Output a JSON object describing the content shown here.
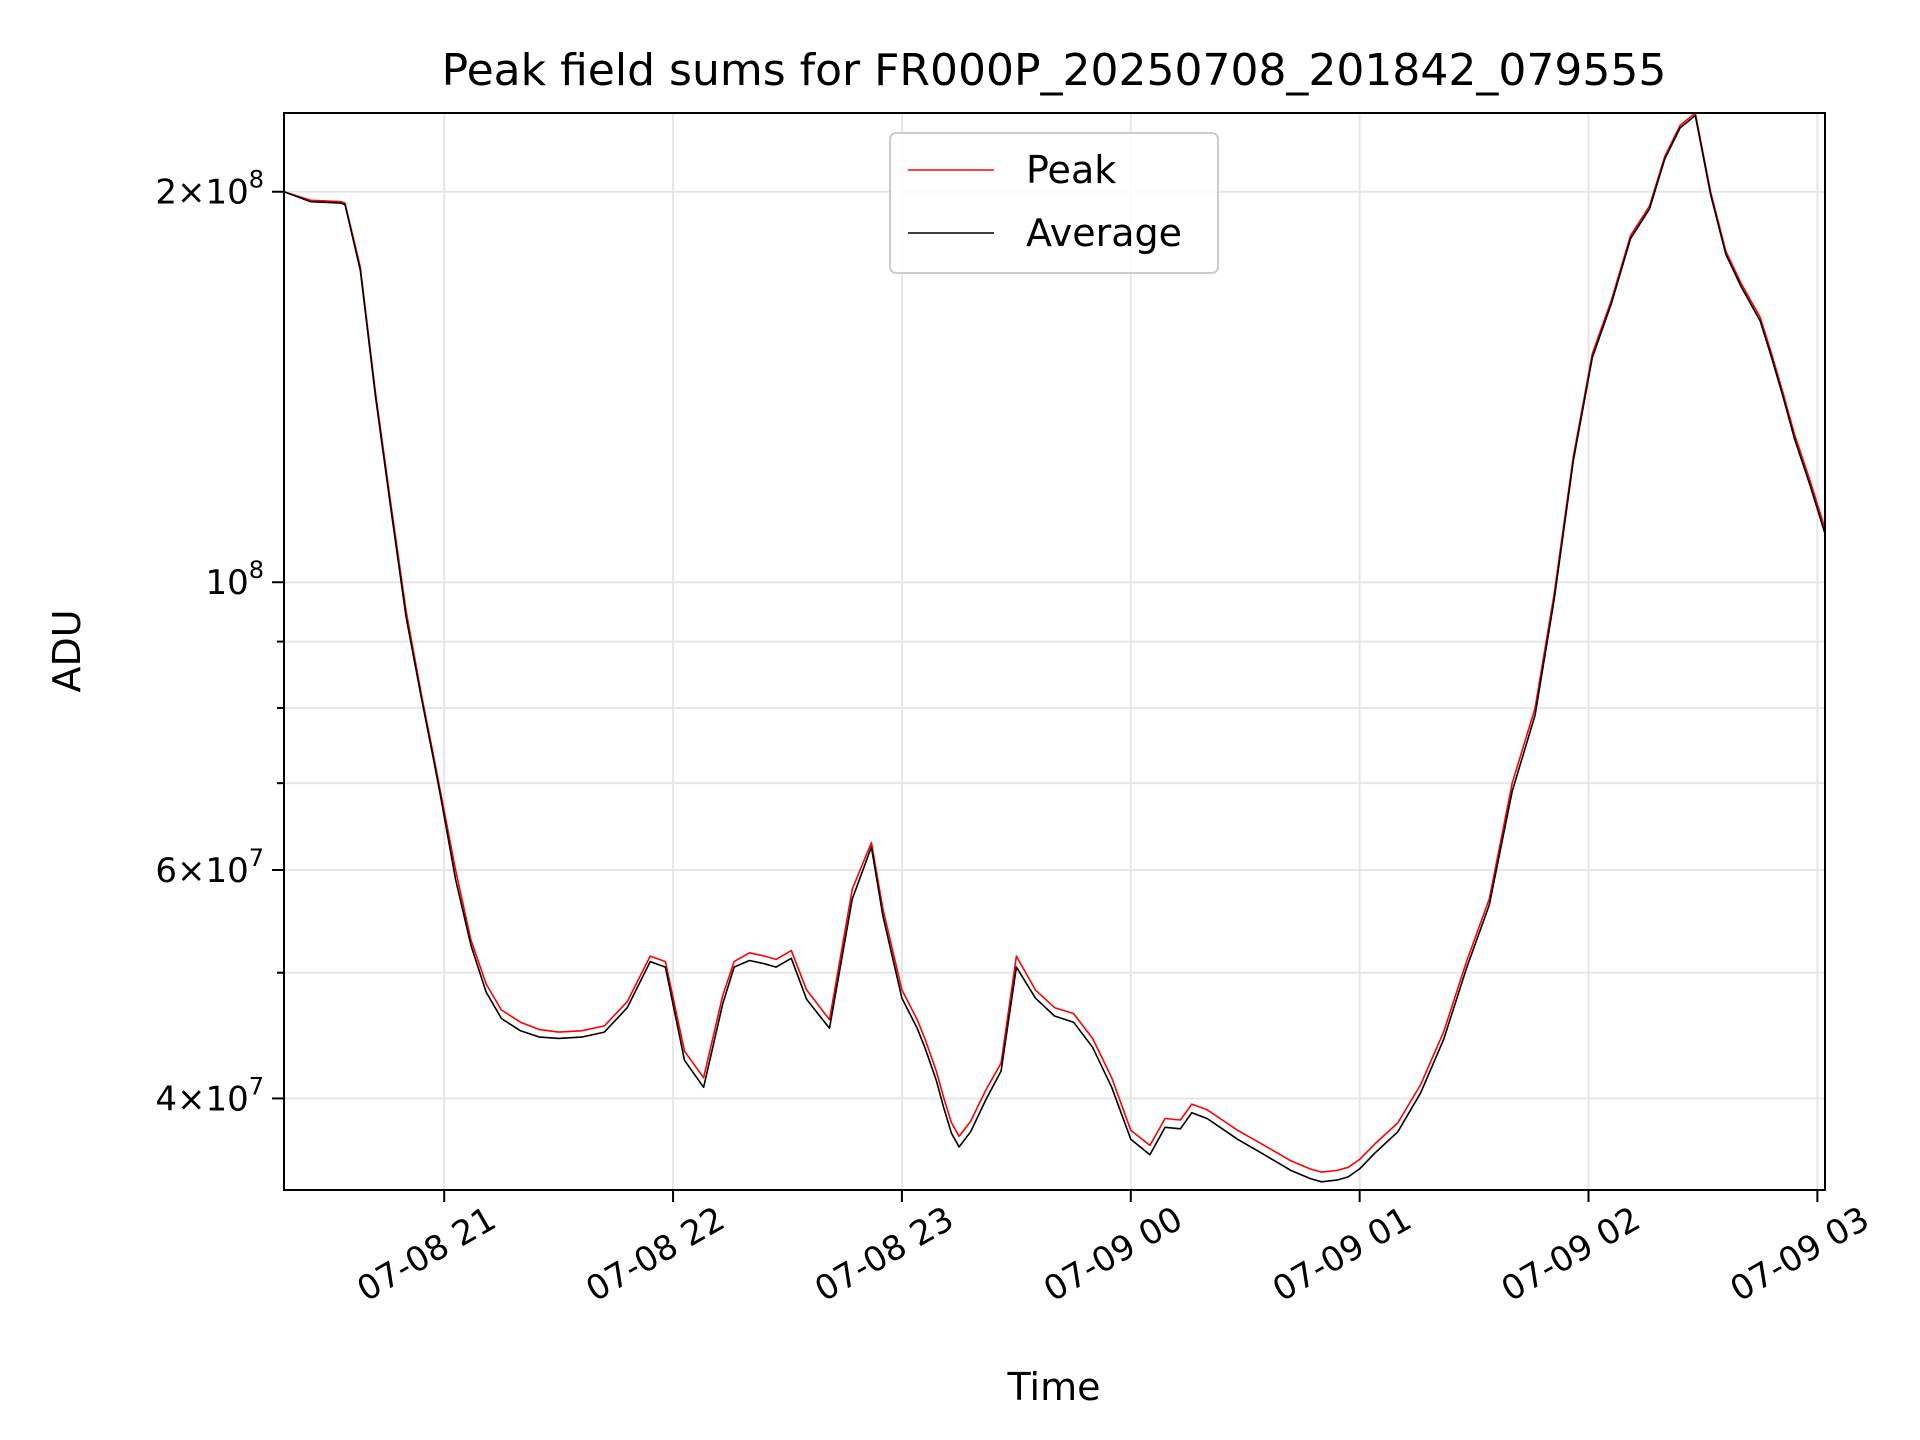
{
  "chart_data": {
    "type": "line",
    "title": "Peak field sums for FR000P_20250708_201842_079555",
    "xlabel": "Time",
    "ylabel": "ADU",
    "x_scale": "time",
    "y_scale": "log",
    "grid": true,
    "legend_position": "top-center",
    "xlim": [
      "2025-07-08T20:18",
      "2025-07-09T03:02"
    ],
    "ylim": [
      34000000,
      230000000
    ],
    "x_ticks": [
      {
        "value": "2025-07-08T21:00",
        "label": "07-08 21"
      },
      {
        "value": "2025-07-08T22:00",
        "label": "07-08 22"
      },
      {
        "value": "2025-07-08T23:00",
        "label": "07-08 23"
      },
      {
        "value": "2025-07-09T00:00",
        "label": "07-09 00"
      },
      {
        "value": "2025-07-09T01:00",
        "label": "07-09 01"
      },
      {
        "value": "2025-07-09T02:00",
        "label": "07-09 02"
      },
      {
        "value": "2025-07-09T03:00",
        "label": "07-09 03"
      }
    ],
    "y_ticks": [
      {
        "value": 40000000,
        "mantissa": "4",
        "exponent": "7"
      },
      {
        "value": 60000000,
        "mantissa": "6",
        "exponent": "7"
      },
      {
        "value": 100000000,
        "mantissa": "",
        "exponent": "8"
      },
      {
        "value": 200000000,
        "mantissa": "2",
        "exponent": "8"
      }
    ],
    "y_minor_ticks": [
      50000000,
      70000000,
      80000000,
      90000000
    ],
    "x": [
      "2025-07-08T20:18",
      "2025-07-08T20:25",
      "2025-07-08T20:33",
      "2025-07-08T20:34",
      "2025-07-08T20:38",
      "2025-07-08T20:42",
      "2025-07-08T20:46",
      "2025-07-08T20:50",
      "2025-07-08T20:54",
      "2025-07-08T20:57",
      "2025-07-08T20:59",
      "2025-07-08T21:03",
      "2025-07-08T21:07",
      "2025-07-08T21:11",
      "2025-07-08T21:15",
      "2025-07-08T21:20",
      "2025-07-08T21:25",
      "2025-07-08T21:30",
      "2025-07-08T21:36",
      "2025-07-08T21:42",
      "2025-07-08T21:48",
      "2025-07-08T21:54",
      "2025-07-08T21:58",
      "2025-07-08T22:03",
      "2025-07-08T22:08",
      "2025-07-08T22:13",
      "2025-07-08T22:16",
      "2025-07-08T22:20",
      "2025-07-08T22:24",
      "2025-07-08T22:27",
      "2025-07-08T22:31",
      "2025-07-08T22:35",
      "2025-07-08T22:41",
      "2025-07-08T22:47",
      "2025-07-08T22:52",
      "2025-07-08T22:55",
      "2025-07-08T23:00",
      "2025-07-08T23:04",
      "2025-07-08T23:06",
      "2025-07-08T23:09",
      "2025-07-08T23:11",
      "2025-07-08T23:13",
      "2025-07-08T23:15",
      "2025-07-08T23:18",
      "2025-07-08T23:22",
      "2025-07-08T23:26",
      "2025-07-08T23:30",
      "2025-07-08T23:35",
      "2025-07-08T23:40",
      "2025-07-08T23:45",
      "2025-07-08T23:50",
      "2025-07-08T23:55",
      "2025-07-09T00:00",
      "2025-07-09T00:05",
      "2025-07-09T00:09",
      "2025-07-09T00:13",
      "2025-07-09T00:16",
      "2025-07-09T00:20",
      "2025-07-09T00:24",
      "2025-07-09T00:28",
      "2025-07-09T00:35",
      "2025-07-09T00:42",
      "2025-07-09T00:47",
      "2025-07-09T00:50",
      "2025-07-09T00:54",
      "2025-07-09T00:57",
      "2025-07-09T01:00",
      "2025-07-09T01:04",
      "2025-07-09T01:10",
      "2025-07-09T01:16",
      "2025-07-09T01:22",
      "2025-07-09T01:28",
      "2025-07-09T01:34",
      "2025-07-09T01:40",
      "2025-07-09T01:46",
      "2025-07-09T01:51",
      "2025-07-09T01:56",
      "2025-07-09T02:01",
      "2025-07-09T02:06",
      "2025-07-09T02:11",
      "2025-07-09T02:16",
      "2025-07-09T02:20",
      "2025-07-09T02:24",
      "2025-07-09T02:28",
      "2025-07-09T02:32",
      "2025-07-09T02:36",
      "2025-07-09T02:40",
      "2025-07-09T02:45",
      "2025-07-09T02:48",
      "2025-07-09T02:51",
      "2025-07-09T02:54",
      "2025-07-09T02:58",
      "2025-07-09T03:02"
    ],
    "series": [
      {
        "name": "Peak",
        "color": "#ff0000",
        "values": [
          200000000,
          197000000,
          196500000,
          196000000,
          175000000,
          140000000,
          115000000,
          95000000,
          82000000,
          74000000,
          69000000,
          60000000,
          53000000,
          49000000,
          46800000,
          45800000,
          45200000,
          45000000,
          45100000,
          45500000,
          47500000,
          51500000,
          51000000,
          43500000,
          41500000,
          48000000,
          51000000,
          51800000,
          51500000,
          51200000,
          52000000,
          48500000,
          46000000,
          58000000,
          63000000,
          56000000,
          48500000,
          46000000,
          44500000,
          42000000,
          40000000,
          38300000,
          37400000,
          38400000,
          40600000,
          42600000,
          51500000,
          48500000,
          47000000,
          46500000,
          44500000,
          41500000,
          37800000,
          36800000,
          38600000,
          38500000,
          39600000,
          39200000,
          38500000,
          37800000,
          36800000,
          35800000,
          35300000,
          35100000,
          35200000,
          35400000,
          35900000,
          36900000,
          38300000,
          41000000,
          45000000,
          51000000,
          57000000,
          70000000,
          80000000,
          98000000,
          125000000,
          150000000,
          165000000,
          185000000,
          195000000,
          213000000,
          225000000,
          230000000,
          200000000,
          180000000,
          170000000,
          160000000,
          150000000,
          140000000,
          130000000,
          120000000,
          110000000
        ]
      },
      {
        "name": "Average",
        "color": "#000000",
        "values": [
          200000000,
          196500000,
          196000000,
          195500000,
          174000000,
          139000000,
          114000000,
          94000000,
          81500000,
          73500000,
          68500000,
          59000000,
          52500000,
          48300000,
          46100000,
          45100000,
          44600000,
          44500000,
          44600000,
          45000000,
          47000000,
          51000000,
          50500000,
          42800000,
          40800000,
          47300000,
          50500000,
          51100000,
          50800000,
          50500000,
          51300000,
          47700000,
          45300000,
          57000000,
          62500000,
          55300000,
          47800000,
          45300000,
          43800000,
          41300000,
          39300000,
          37600000,
          36700000,
          37700000,
          39900000,
          42000000,
          50500000,
          47800000,
          46300000,
          45800000,
          43800000,
          40800000,
          37200000,
          36200000,
          38000000,
          37900000,
          39000000,
          38600000,
          37900000,
          37200000,
          36200000,
          35200000,
          34700000,
          34500000,
          34600000,
          34800000,
          35300000,
          36300000,
          37700000,
          40400000,
          44400000,
          50400000,
          56400000,
          69000000,
          79000000,
          97000000,
          124000000,
          149000000,
          164000000,
          184000000,
          194000000,
          212000000,
          224000000,
          229000000,
          199000000,
          179000000,
          169000000,
          159000000,
          149000000,
          139000000,
          129000000,
          119000000,
          109000000
        ]
      }
    ]
  }
}
